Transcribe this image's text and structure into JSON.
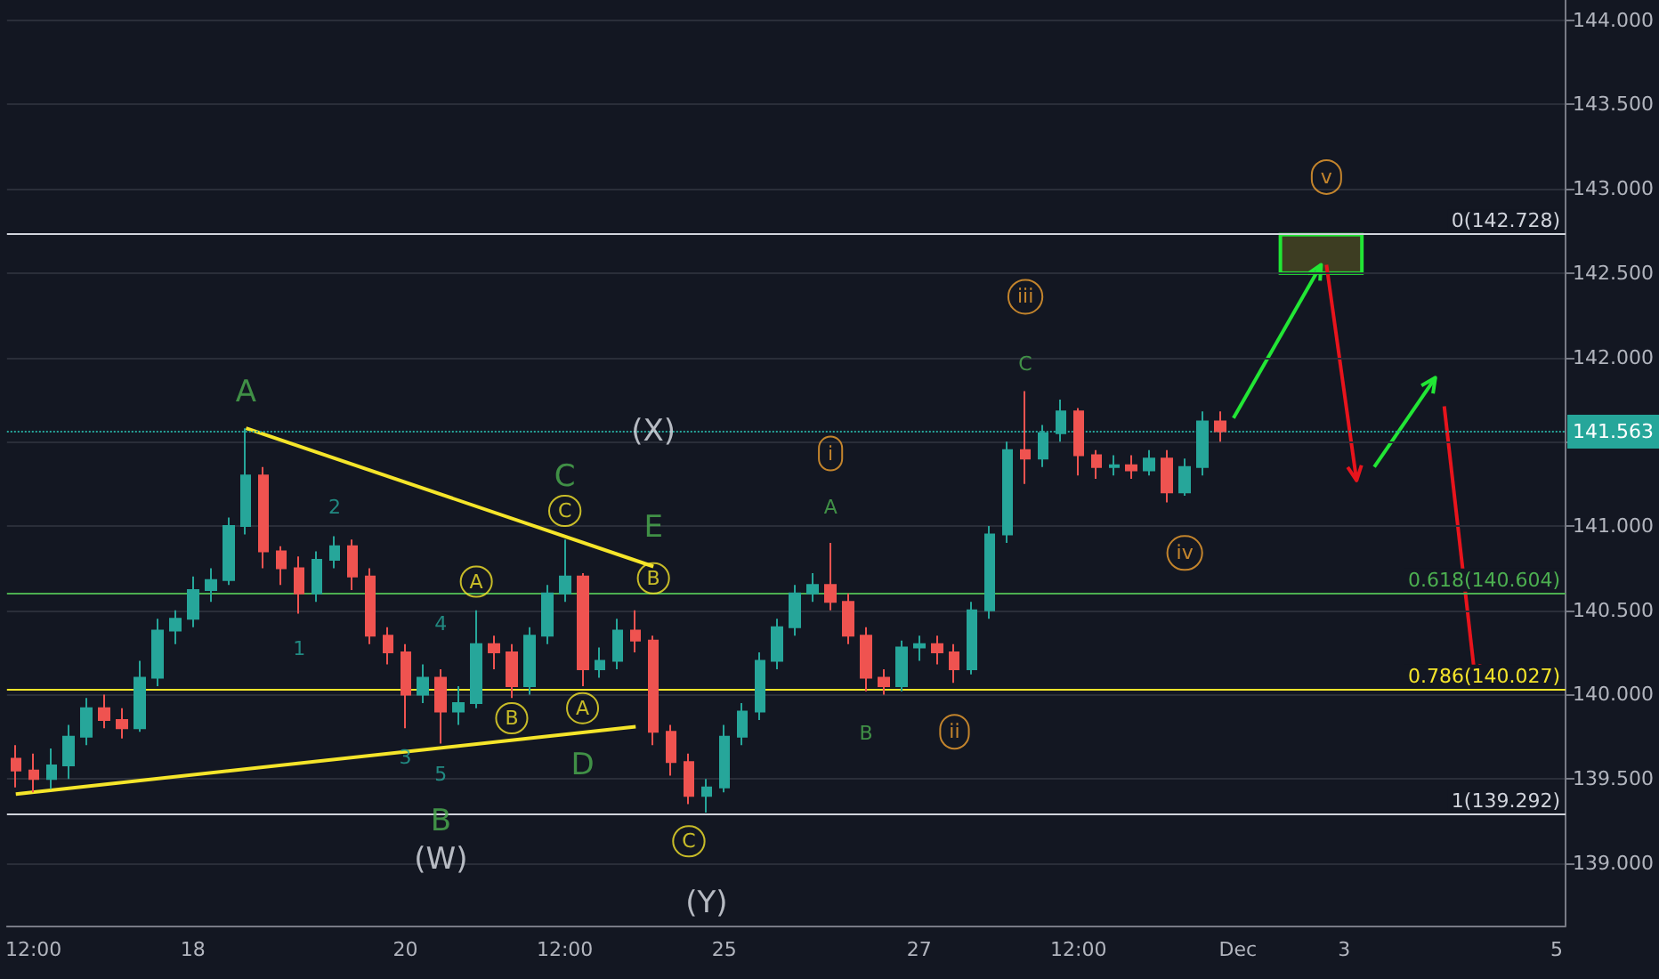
{
  "chart_data": {
    "type": "candlestick",
    "categories": [
      null,
      "12:00",
      null,
      null,
      null,
      null,
      null,
      null,
      null,
      null,
      "18",
      null,
      null,
      null,
      null,
      null,
      null,
      null,
      null,
      null,
      null,
      null,
      "20",
      null,
      null,
      null,
      null,
      null,
      null,
      null,
      null,
      "12:00",
      null,
      null,
      null,
      null,
      null,
      null,
      null,
      null,
      "25",
      null,
      null,
      null,
      null,
      null,
      null,
      null,
      null,
      null,
      null,
      "27",
      null,
      null,
      null,
      null,
      null,
      null,
      null,
      null,
      "12:00",
      null,
      null,
      null,
      null,
      null,
      null,
      null,
      null,
      "Dec",
      null,
      null,
      null,
      null,
      null,
      "3",
      null,
      null,
      null,
      null,
      null,
      null,
      null,
      null,
      null,
      null,
      null,
      "5"
    ],
    "ohlc": [
      [
        139.62,
        139.7,
        139.45,
        139.55
      ],
      [
        139.55,
        139.65,
        139.42,
        139.5
      ],
      [
        139.5,
        139.68,
        139.44,
        139.58
      ],
      [
        139.58,
        139.82,
        139.5,
        139.75
      ],
      [
        139.75,
        139.98,
        139.7,
        139.92
      ],
      [
        139.92,
        140.0,
        139.8,
        139.85
      ],
      [
        139.85,
        139.92,
        139.74,
        139.8
      ],
      [
        139.8,
        140.2,
        139.78,
        140.1
      ],
      [
        140.1,
        140.45,
        140.05,
        140.38
      ],
      [
        140.38,
        140.5,
        140.3,
        140.45
      ],
      [
        140.45,
        140.7,
        140.4,
        140.62
      ],
      [
        140.62,
        140.75,
        140.55,
        140.68
      ],
      [
        140.68,
        141.05,
        140.65,
        141.0
      ],
      [
        141.0,
        141.58,
        140.95,
        141.3
      ],
      [
        141.3,
        141.35,
        140.75,
        140.85
      ],
      [
        140.85,
        140.88,
        140.65,
        140.75
      ],
      [
        140.75,
        140.82,
        140.48,
        140.6
      ],
      [
        140.6,
        140.85,
        140.55,
        140.8
      ],
      [
        140.8,
        140.94,
        140.75,
        140.88
      ],
      [
        140.88,
        140.92,
        140.62,
        140.7
      ],
      [
        140.7,
        140.75,
        140.3,
        140.35
      ],
      [
        140.35,
        140.4,
        140.18,
        140.25
      ],
      [
        140.25,
        140.3,
        139.8,
        140.0
      ],
      [
        140.0,
        140.18,
        139.95,
        140.1
      ],
      [
        140.1,
        140.15,
        139.71,
        139.9
      ],
      [
        139.9,
        140.05,
        139.82,
        139.95
      ],
      [
        139.95,
        140.5,
        139.92,
        140.3
      ],
      [
        140.3,
        140.35,
        140.15,
        140.25
      ],
      [
        140.25,
        140.3,
        139.98,
        140.05
      ],
      [
        140.05,
        140.4,
        140.0,
        140.35
      ],
      [
        140.35,
        140.65,
        140.3,
        140.6
      ],
      [
        140.6,
        140.92,
        140.55,
        140.7
      ],
      [
        140.7,
        140.72,
        140.05,
        140.15
      ],
      [
        140.15,
        140.28,
        140.1,
        140.2
      ],
      [
        140.2,
        140.45,
        140.15,
        140.38
      ],
      [
        140.38,
        140.5,
        140.25,
        140.32
      ],
      [
        140.32,
        140.35,
        139.7,
        139.78
      ],
      [
        139.78,
        139.82,
        139.52,
        139.6
      ],
      [
        139.6,
        139.65,
        139.35,
        139.4
      ],
      [
        139.4,
        139.5,
        139.3,
        139.45
      ],
      [
        139.45,
        139.82,
        139.42,
        139.75
      ],
      [
        139.75,
        139.95,
        139.7,
        139.9
      ],
      [
        139.9,
        140.25,
        139.85,
        140.2
      ],
      [
        140.2,
        140.45,
        140.15,
        140.4
      ],
      [
        140.4,
        140.65,
        140.35,
        140.6
      ],
      [
        140.6,
        140.72,
        140.55,
        140.65
      ],
      [
        140.65,
        140.9,
        140.5,
        140.55
      ],
      [
        140.55,
        140.6,
        140.3,
        140.35
      ],
      [
        140.35,
        140.4,
        140.02,
        140.1
      ],
      [
        140.1,
        140.15,
        140.0,
        140.05
      ],
      [
        140.05,
        140.32,
        140.02,
        140.28
      ],
      [
        140.28,
        140.35,
        140.2,
        140.3
      ],
      [
        140.3,
        140.35,
        140.18,
        140.25
      ],
      [
        140.25,
        140.3,
        140.07,
        140.15
      ],
      [
        140.15,
        140.55,
        140.12,
        140.5
      ],
      [
        140.5,
        141.0,
        140.45,
        140.95
      ],
      [
        140.95,
        141.5,
        140.9,
        141.45
      ],
      [
        141.45,
        141.8,
        141.25,
        141.4
      ],
      [
        141.4,
        141.6,
        141.35,
        141.55
      ],
      [
        141.55,
        141.75,
        141.5,
        141.68
      ],
      [
        141.68,
        141.7,
        141.3,
        141.42
      ],
      [
        141.42,
        141.45,
        141.28,
        141.35
      ],
      [
        141.35,
        141.42,
        141.3,
        141.36
      ],
      [
        141.36,
        141.42,
        141.28,
        141.33
      ],
      [
        141.33,
        141.45,
        141.3,
        141.4
      ],
      [
        141.4,
        141.45,
        141.14,
        141.2
      ],
      [
        141.2,
        141.4,
        141.18,
        141.35
      ],
      [
        141.35,
        141.68,
        141.3,
        141.62
      ],
      [
        141.62,
        141.68,
        141.5,
        141.563
      ],
      null,
      null,
      null,
      null,
      null,
      null,
      null,
      null,
      null,
      null,
      null,
      null,
      null,
      null,
      null,
      null,
      null,
      null,
      null
    ],
    "series": [
      {
        "type": "line",
        "color": "#f5e52a",
        "values": [
          null,
          null,
          null,
          null,
          null,
          null,
          null,
          null,
          null,
          null,
          null,
          null,
          null,
          141.58,
          null,
          null,
          null,
          null,
          null,
          null,
          null,
          null,
          null,
          null,
          null,
          null,
          null,
          null,
          null,
          null,
          null,
          null,
          null,
          null,
          null,
          null,
          140.76,
          null,
          null,
          null,
          null,
          null,
          null,
          null,
          null,
          null,
          null,
          null,
          null,
          null,
          null,
          null,
          null,
          null,
          null,
          null,
          null,
          null,
          null,
          null,
          null,
          null,
          null,
          null,
          null,
          null,
          null,
          null,
          null,
          null,
          null,
          null,
          null,
          null,
          null,
          null,
          null,
          null,
          null,
          null,
          null,
          null,
          null,
          null,
          null,
          null,
          null,
          null
        ]
      },
      {
        "type": "line",
        "color": "#f5e52a",
        "values": [
          139.41,
          null,
          null,
          null,
          null,
          null,
          null,
          null,
          null,
          null,
          null,
          null,
          null,
          null,
          null,
          null,
          null,
          null,
          null,
          null,
          null,
          null,
          null,
          null,
          null,
          null,
          null,
          null,
          null,
          null,
          null,
          null,
          null,
          null,
          null,
          139.81,
          null,
          null,
          null,
          null,
          null,
          null,
          null,
          null,
          null,
          null,
          null,
          null,
          null,
          null,
          null,
          null,
          null,
          null,
          null,
          null,
          null,
          null,
          null,
          null,
          null,
          null,
          null,
          null,
          null,
          null,
          null,
          null,
          null,
          null,
          null,
          null,
          null,
          null,
          null,
          null,
          null,
          null,
          null,
          null,
          null,
          null,
          null,
          null,
          null,
          null,
          null,
          null
        ]
      }
    ],
    "ylim": [
      138.63,
      144.12
    ],
    "yticks": [
      {
        "value": 139,
        "label": "139.000"
      },
      {
        "value": 139.5,
        "label": "139.500"
      },
      {
        "value": 140,
        "label": "140.000"
      },
      {
        "value": 140.5,
        "label": "140.500"
      },
      {
        "value": 141,
        "label": "141.000"
      },
      {
        "value": 141.5,
        "label": null
      },
      {
        "value": 142,
        "label": "142.000"
      },
      {
        "value": 142.5,
        "label": "142.500"
      },
      {
        "value": 143,
        "label": "143.000"
      },
      {
        "value": 143.5,
        "label": "143.500"
      },
      {
        "value": 144,
        "label": "144.000"
      }
    ],
    "grid": "y",
    "ref_lines": [
      {
        "axis": "y",
        "value": 142.728,
        "label": "0(142.728)",
        "color": "#d1d4dc"
      },
      {
        "axis": "y",
        "value": 140.604,
        "label": "0.618(140.604)",
        "color": "#4caf50"
      },
      {
        "axis": "y",
        "value": 140.027,
        "label": "0.786(140.027)",
        "color": "#f5e52a"
      },
      {
        "axis": "y",
        "value": 139.292,
        "label": "1(139.292)",
        "color": "#d1d4dc"
      },
      {
        "axis": "y",
        "value": 141.563,
        "label": "141.563",
        "color": "#26a69a",
        "line_style": "dotted"
      }
    ],
    "annotations": [
      "A",
      "2",
      "1",
      "4",
      "3",
      "5",
      "B",
      "(W)",
      "A",
      "B",
      "C",
      "C",
      "A",
      "D",
      "E",
      "B",
      "(X)",
      "C",
      "(Y)",
      "i",
      "A",
      "B",
      "ii",
      "C",
      "iii",
      "iv",
      "v"
    ]
  }
}
